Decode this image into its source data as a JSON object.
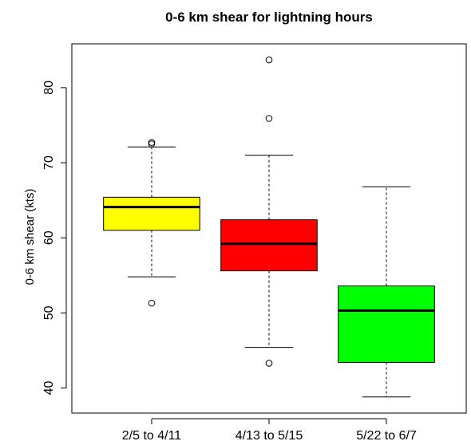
{
  "chart_data": {
    "type": "box",
    "title": "0-6 km shear for lightning hours",
    "xlabel": "",
    "ylabel": "0-6 km shear (kts)",
    "ylim": [
      37,
      85
    ],
    "yticks": [
      40,
      50,
      60,
      70,
      80
    ],
    "categories": [
      "2/5 to 4/11",
      "4/13 to 5/15",
      "5/22 to 6/7"
    ],
    "boxes": [
      {
        "category": "2/5 to 4/11",
        "color": "#ffff00",
        "whisker_low": 54.8,
        "q1": 61.0,
        "median": 64.1,
        "q3": 65.4,
        "whisker_high": 72.1,
        "outliers": [
          51.3,
          72.5,
          72.7
        ]
      },
      {
        "category": "4/13 to 5/15",
        "color": "#ff0000",
        "whisker_low": 45.4,
        "q1": 55.6,
        "median": 59.2,
        "q3": 62.4,
        "whisker_high": 71.0,
        "outliers": [
          43.3,
          75.9,
          83.7
        ]
      },
      {
        "category": "5/22 to 6/7",
        "color": "#00ff00",
        "whisker_low": 38.8,
        "q1": 43.4,
        "median": 50.3,
        "q3": 53.6,
        "whisker_high": 66.8,
        "outliers": []
      }
    ]
  }
}
